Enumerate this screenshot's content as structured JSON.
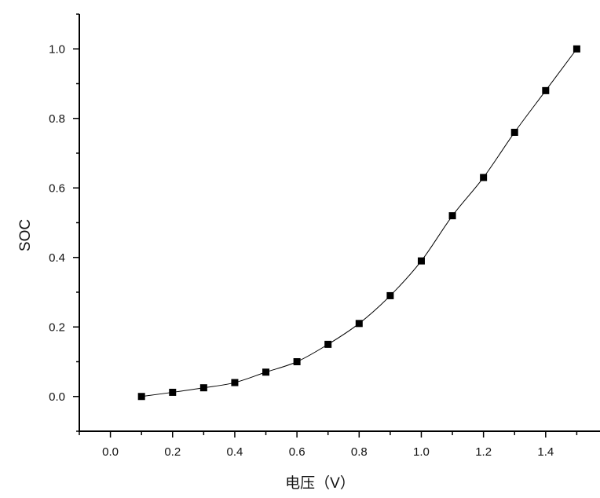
{
  "chart_data": {
    "type": "line",
    "title": "",
    "xlabel": "电压（V）",
    "ylabel": "SOC",
    "xlim": [
      -0.1,
      1.6
    ],
    "ylim": [
      -0.1,
      1.1
    ],
    "x_ticks": [
      "0.0",
      "0.2",
      "0.4",
      "0.6",
      "0.8",
      "1.0",
      "1.2",
      "1.4"
    ],
    "y_ticks": [
      "0.0",
      "0.2",
      "0.4",
      "0.6",
      "0.8",
      "1.0"
    ],
    "grid": false,
    "marker": "square",
    "series": [
      {
        "name": "SOC",
        "color": "#000000",
        "x": [
          0.1,
          0.2,
          0.3,
          0.4,
          0.5,
          0.6,
          0.7,
          0.8,
          0.9,
          1.0,
          1.1,
          1.2,
          1.3,
          1.4,
          1.5
        ],
        "y": [
          0.0,
          0.012,
          0.025,
          0.04,
          0.07,
          0.1,
          0.15,
          0.21,
          0.29,
          0.39,
          0.52,
          0.63,
          0.76,
          0.88,
          1.0
        ]
      }
    ]
  }
}
